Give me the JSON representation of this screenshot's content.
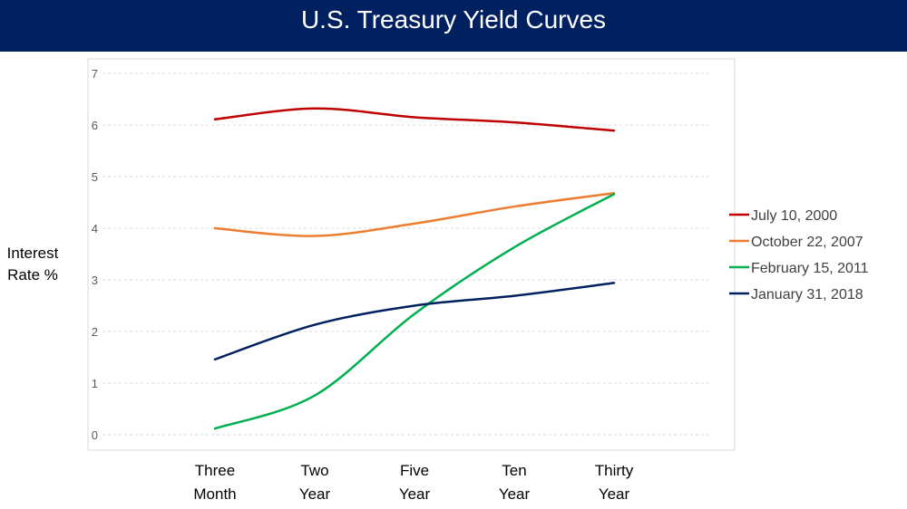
{
  "chart_data": {
    "type": "line",
    "title": "U.S. Treasury Yield Curves",
    "ylabel": "Interest Rate %",
    "xlabel": "",
    "categories": [
      "Three Month",
      "Two Year",
      "Five Year",
      "Ten Year",
      "Thirty Year"
    ],
    "category_lines": [
      [
        "Three",
        "Month"
      ],
      [
        "Two",
        "Year"
      ],
      [
        "Five",
        "Year"
      ],
      [
        "Ten",
        "Year"
      ],
      [
        "Thirty",
        "Year"
      ]
    ],
    "ylim": [
      0,
      7
    ],
    "yticks": [
      0,
      1,
      2,
      3,
      4,
      5,
      6,
      7
    ],
    "grid": true,
    "smooth": true,
    "legend_position": "right",
    "series": [
      {
        "name": "July 10, 2000",
        "color": "#C00000",
        "values": [
          6.11,
          6.32,
          6.15,
          6.05,
          5.89
        ]
      },
      {
        "name": "October 22, 2007",
        "color": "#ED7D31",
        "values": [
          4.0,
          3.85,
          4.09,
          4.42,
          4.68
        ]
      },
      {
        "name": "February 15, 2011",
        "color": "#00B050",
        "values": [
          0.12,
          0.76,
          2.34,
          3.63,
          4.66
        ]
      },
      {
        "name": "January 31, 2018",
        "color": "#002060",
        "values": [
          1.46,
          2.13,
          2.5,
          2.69,
          2.94
        ]
      }
    ]
  }
}
